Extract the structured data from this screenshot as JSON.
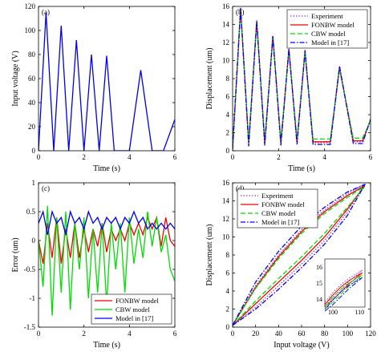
{
  "colors": {
    "blue": "#0000ee",
    "red": "#ee0000",
    "green": "#00dd00",
    "purple": "#9a3fb4",
    "axis": "#000000",
    "bg": "#ffffff"
  },
  "chart_data": [
    {
      "panel_label": "(a)",
      "type": "line",
      "xlabel": "Time (s)",
      "ylabel": "Input voltage (V)",
      "xlim": [
        0,
        6
      ],
      "ylim": [
        0,
        120
      ],
      "xticks": [
        0,
        2,
        4,
        6
      ],
      "yticks": [
        0,
        20,
        40,
        60,
        80,
        100,
        120
      ],
      "grid": false,
      "series": [
        {
          "color": "#0000ee",
          "dash": "solid",
          "x": [
            0,
            0.33,
            0.67,
            1.0,
            1.33,
            1.67,
            2.0,
            2.33,
            2.67,
            3.0,
            3.33,
            3.67,
            4.0,
            4.5,
            5.0,
            5.5,
            6.0
          ],
          "y": [
            0,
            115,
            0,
            104,
            0,
            92,
            0,
            80,
            0,
            79,
            0,
            0,
            0,
            67,
            0,
            0,
            26
          ]
        }
      ]
    },
    {
      "panel_label": "(b)",
      "type": "line",
      "xlabel": "Time (s)",
      "ylabel": "Displacement (um)",
      "xlim": [
        0,
        6
      ],
      "ylim": [
        0,
        16
      ],
      "xticks": [
        0,
        2,
        4,
        6
      ],
      "yticks": [
        0,
        2,
        4,
        6,
        8,
        10,
        12,
        14,
        16
      ],
      "grid": false,
      "legend_position": "top-right",
      "series": [
        {
          "name": "Experiment",
          "color": "#9a3fb4",
          "dash": "dotted",
          "x": [
            0,
            0.35,
            0.7,
            1.05,
            1.4,
            1.75,
            2.1,
            2.45,
            2.8,
            3.15,
            3.5,
            3.85,
            4.25,
            4.65,
            5.25,
            5.65,
            6.0
          ],
          "y": [
            0.2,
            15.9,
            0.7,
            14.5,
            0.8,
            12.8,
            0.8,
            11.3,
            0.9,
            11.2,
            0.9,
            0.9,
            0.9,
            9.3,
            1.0,
            1.0,
            3.5
          ]
        },
        {
          "name": "FONBW model",
          "color": "#ee0000",
          "dash": "solid",
          "x": [
            0,
            0.35,
            0.7,
            1.05,
            1.4,
            1.75,
            2.1,
            2.45,
            2.8,
            3.15,
            3.5,
            3.85,
            4.25,
            4.65,
            5.25,
            5.65,
            6.0
          ],
          "y": [
            0.2,
            15.7,
            0.9,
            14.3,
            0.9,
            12.7,
            0.9,
            11.2,
            1.0,
            11.0,
            1.0,
            1.0,
            1.0,
            9.2,
            1.1,
            1.1,
            3.4
          ]
        },
        {
          "name": "CBW model",
          "color": "#00dd00",
          "dash": "dashed",
          "x": [
            0,
            0.35,
            0.7,
            1.05,
            1.4,
            1.75,
            2.1,
            2.45,
            2.8,
            3.15,
            3.5,
            3.85,
            4.25,
            4.65,
            5.25,
            5.65,
            6.0
          ],
          "y": [
            0.2,
            15.6,
            1.1,
            14.2,
            1.2,
            12.5,
            1.2,
            11.0,
            1.3,
            10.9,
            1.3,
            1.3,
            1.3,
            9.0,
            1.4,
            1.4,
            3.3
          ]
        },
        {
          "name": "Model in [17]",
          "color": "#0000ee",
          "dash": "dashdot",
          "x": [
            0,
            0.35,
            0.7,
            1.05,
            1.4,
            1.75,
            2.1,
            2.45,
            2.8,
            3.15,
            3.5,
            3.85,
            4.25,
            4.65,
            5.25,
            5.65,
            6.0
          ],
          "y": [
            0.2,
            15.8,
            0.5,
            14.4,
            0.6,
            12.7,
            0.6,
            11.3,
            0.7,
            11.1,
            0.7,
            0.7,
            0.7,
            9.4,
            0.8,
            0.8,
            3.5
          ]
        }
      ]
    },
    {
      "panel_label": "(c)",
      "type": "line",
      "xlabel": "Time (s)",
      "ylabel": "Error (um)",
      "xlim": [
        0,
        6
      ],
      "ylim": [
        -1.5,
        1
      ],
      "xticks": [
        0,
        2,
        4,
        6
      ],
      "yticks": [
        -1.5,
        -1,
        -0.5,
        0,
        0.5,
        1
      ],
      "grid": false,
      "legend_position": "bottom-right",
      "series": [
        {
          "name": "FONBW model",
          "color": "#ee0000",
          "dash": "solid",
          "x": [
            0,
            0.2,
            0.4,
            0.6,
            0.8,
            1.0,
            1.2,
            1.4,
            1.6,
            1.8,
            2.0,
            2.2,
            2.4,
            2.6,
            2.8,
            3.0,
            3.2,
            3.4,
            3.6,
            3.8,
            4.0,
            4.2,
            4.4,
            4.6,
            4.8,
            5.0,
            5.2,
            5.4,
            5.6,
            5.8,
            6.0
          ],
          "y": [
            0,
            -0.4,
            0.3,
            -0.3,
            0.4,
            -0.4,
            0.2,
            -0.3,
            0.3,
            -0.3,
            0.2,
            -0.2,
            0.2,
            -0.1,
            0.3,
            -0.2,
            0.2,
            0.0,
            0.2,
            0.0,
            0.3,
            0.1,
            0.3,
            0.1,
            0.4,
            0.2,
            0.4,
            -0.1,
            0.4,
            0.0,
            -0.1
          ]
        },
        {
          "name": "CBW model",
          "color": "#00dd00",
          "dash": "solid",
          "x": [
            0,
            0.2,
            0.4,
            0.6,
            0.8,
            1.0,
            1.2,
            1.4,
            1.6,
            1.8,
            2.0,
            2.2,
            2.4,
            2.6,
            2.8,
            3.0,
            3.2,
            3.4,
            3.6,
            3.8,
            4.0,
            4.2,
            4.4,
            4.6,
            4.8,
            5.0,
            5.2,
            5.4,
            5.6,
            5.8,
            6.0
          ],
          "y": [
            0,
            -0.8,
            0.6,
            -1.3,
            0.4,
            -0.9,
            0.5,
            -1.2,
            0.3,
            -0.5,
            0.4,
            -1.0,
            0.2,
            -0.9,
            0.3,
            -1.1,
            0.3,
            -0.5,
            0.3,
            -0.9,
            0.4,
            -0.4,
            0.2,
            -0.3,
            0.5,
            -0.1,
            0.4,
            -0.2,
            0.1,
            -0.5,
            -0.7
          ]
        },
        {
          "name": "Model in [17]",
          "color": "#0000ee",
          "dash": "solid",
          "x": [
            0,
            0.2,
            0.4,
            0.6,
            0.8,
            1.0,
            1.2,
            1.4,
            1.6,
            1.8,
            2.0,
            2.2,
            2.4,
            2.6,
            2.8,
            3.0,
            3.2,
            3.4,
            3.6,
            3.8,
            4.0,
            4.2,
            4.4,
            4.6,
            4.8,
            5.0,
            5.2,
            5.4,
            5.6,
            5.8,
            6.0
          ],
          "y": [
            0.3,
            0.5,
            0.1,
            0.5,
            0.3,
            0.4,
            0.1,
            0.5,
            0.3,
            0.4,
            0.2,
            0.5,
            0.3,
            0.4,
            0.2,
            0.4,
            0.3,
            0.4,
            0.2,
            0.4,
            0.3,
            0.5,
            0.3,
            0.4,
            0.2,
            0.3,
            0.2,
            0.3,
            0.2,
            0.3,
            0.2
          ]
        }
      ]
    },
    {
      "panel_label": "(d)",
      "type": "line",
      "xlabel": "Input voltage (V)",
      "ylabel": "Displacement (um)",
      "xlim": [
        0,
        120
      ],
      "ylim": [
        0,
        16
      ],
      "xticks": [
        0,
        20,
        40,
        60,
        80,
        100,
        120
      ],
      "yticks": [
        0,
        2,
        4,
        6,
        8,
        10,
        12,
        14,
        16
      ],
      "grid": false,
      "legend_position": "top-left",
      "series": [
        {
          "name": "Experiment",
          "color": "#9a3fb4",
          "dash": "dotted",
          "x": [
            0,
            20,
            40,
            60,
            80,
            100,
            115,
            100,
            80,
            60,
            40,
            20,
            0
          ],
          "y": [
            0.2,
            2.2,
            4.6,
            7.0,
            9.6,
            12.8,
            15.9,
            14.8,
            13.0,
            10.8,
            8.0,
            4.6,
            0.2
          ]
        },
        {
          "name": "FONBW model",
          "color": "#ee0000",
          "dash": "solid",
          "x": [
            0,
            20,
            40,
            60,
            80,
            100,
            115,
            100,
            80,
            60,
            40,
            20,
            0
          ],
          "y": [
            0.2,
            2.6,
            5.0,
            7.4,
            10.0,
            13.1,
            15.7,
            14.6,
            12.8,
            10.6,
            7.8,
            4.4,
            0.2
          ]
        },
        {
          "name": "CBW model",
          "color": "#00dd00",
          "dash": "dashed",
          "x": [
            0,
            20,
            40,
            60,
            80,
            100,
            115,
            100,
            80,
            60,
            40,
            20,
            0
          ],
          "y": [
            0.2,
            2.9,
            5.4,
            7.8,
            10.4,
            13.3,
            15.6,
            14.4,
            12.6,
            10.4,
            7.6,
            4.3,
            0.2
          ]
        },
        {
          "name": "Model in [17]",
          "color": "#0000ee",
          "dash": "dashdot",
          "x": [
            0,
            20,
            40,
            60,
            80,
            100,
            115,
            100,
            80,
            60,
            40,
            20,
            0
          ],
          "y": [
            0.2,
            2.0,
            4.2,
            6.6,
            9.2,
            12.4,
            15.8,
            15.0,
            13.3,
            11.2,
            8.4,
            5.0,
            0.2
          ]
        }
      ],
      "inset": {
        "xlim": [
          97,
          112
        ],
        "ylim": [
          13.5,
          16.5
        ],
        "xticks": [
          100,
          110
        ],
        "yticks": [
          14,
          15,
          16
        ],
        "x": [
          97,
          100,
          103,
          106,
          109,
          111,
          109,
          106,
          103,
          100,
          97
        ],
        "y": [
          13.7,
          14.1,
          14.6,
          15.1,
          15.5,
          15.8,
          15.6,
          15.3,
          14.9,
          14.4,
          13.8
        ]
      }
    }
  ]
}
